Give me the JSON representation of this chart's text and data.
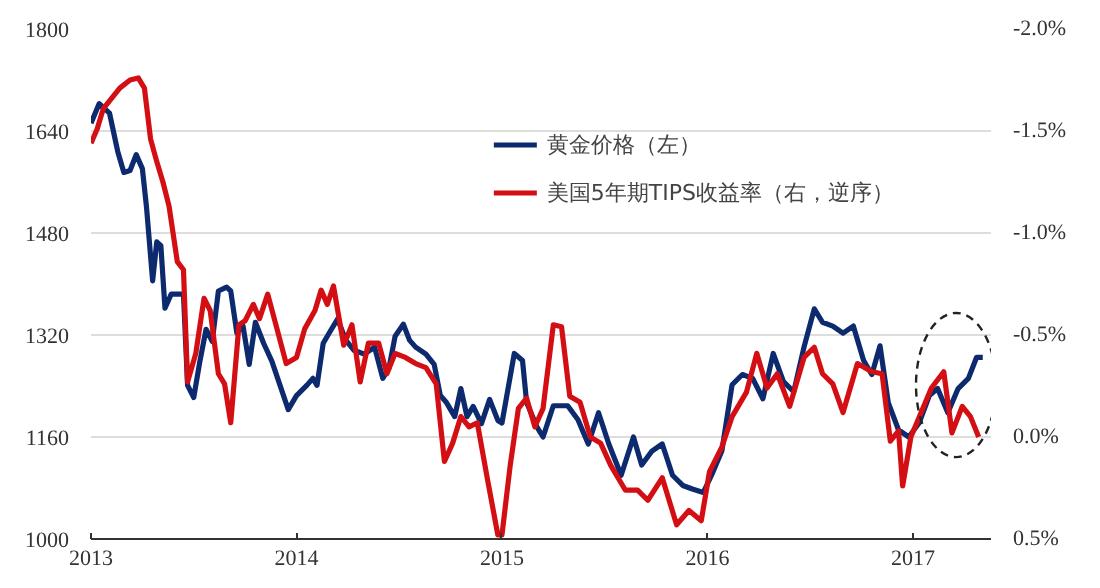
{
  "chart_data": {
    "type": "line",
    "x": [
      2013.0,
      2013.04,
      2013.09,
      2013.13,
      2013.16,
      2013.19,
      2013.22,
      2013.25,
      2013.27,
      2013.3,
      2013.32,
      2013.34,
      2013.36,
      2013.39,
      2013.42,
      2013.45,
      2013.47,
      2013.5,
      2013.53,
      2013.56,
      2013.59,
      2013.62,
      2013.66,
      2013.68,
      2013.71,
      2013.74,
      2013.77,
      2013.8,
      2013.84,
      2013.88,
      2013.92,
      2013.96,
      2014.0,
      2014.05,
      2014.08,
      2014.1,
      2014.13,
      2014.17,
      2014.2,
      2014.24,
      2014.28,
      2014.33,
      2014.38,
      2014.42,
      2014.45,
      2014.48,
      2014.52,
      2014.55,
      2014.58,
      2014.63,
      2014.67,
      2014.7,
      2014.73,
      2014.77,
      2014.8,
      2014.83,
      2014.86,
      2014.9,
      2014.94,
      2014.98,
      2015.0,
      2015.06,
      2015.1,
      2015.12,
      2015.17,
      2015.2,
      2015.25,
      2015.32,
      2015.37,
      2015.42,
      2015.47,
      2015.52,
      2015.58,
      2015.64,
      2015.68,
      2015.73,
      2015.78,
      2015.83,
      2015.88,
      2015.93,
      2015.98,
      2016.02,
      2016.07,
      2016.12,
      2016.17,
      2016.22,
      2016.27,
      2016.32,
      2016.37,
      2016.42,
      2016.47,
      2016.52,
      2016.56,
      2016.61,
      2016.66,
      2016.71,
      2016.76,
      2016.8,
      2016.84,
      2016.88,
      2016.93,
      2016.98,
      2017.03,
      2017.08,
      2017.12,
      2017.17,
      2017.22,
      2017.27,
      2017.31,
      2017.34
    ],
    "series": [
      {
        "name": "黄金价格（左）",
        "color": "#0d2a6e",
        "values": [
          1652,
          1683,
          1668,
          1608,
          1575,
          1578,
          1603,
          1581,
          1521,
          1405,
          1466,
          1460,
          1362,
          1384,
          1384,
          1384,
          1241,
          1222,
          1279,
          1329,
          1310,
          1389,
          1395,
          1389,
          1323,
          1334,
          1274,
          1340,
          1307,
          1279,
          1241,
          1203,
          1225,
          1241,
          1252,
          1241,
          1307,
          1329,
          1345,
          1312,
          1296,
          1290,
          1301,
          1252,
          1268,
          1318,
          1337,
          1312,
          1301,
          1290,
          1274,
          1225,
          1214,
          1192,
          1236,
          1192,
          1208,
          1181,
          1219,
          1186,
          1182,
          1291,
          1280,
          1214,
          1176,
          1160,
          1209,
          1209,
          1187,
          1149,
          1198,
          1149,
          1100,
          1160,
          1116,
          1138,
          1149,
          1100,
          1084,
          1078,
          1073,
          1100,
          1138,
          1242,
          1258,
          1252,
          1220,
          1291,
          1247,
          1231,
          1301,
          1361,
          1340,
          1334,
          1323,
          1334,
          1280,
          1258,
          1303,
          1214,
          1171,
          1160,
          1182,
          1225,
          1236,
          1198,
          1236,
          1252,
          1285,
          1285
        ]
      },
      {
        "name": "美国5年期TIPS收益率（右，逆序）",
        "color": "#d40f14",
        "axis": "y2",
        "x": [
          2013.0,
          2013.03,
          2013.06,
          2013.1,
          2013.14,
          2013.19,
          2013.23,
          2013.26,
          2013.29,
          2013.32,
          2013.35,
          2013.38,
          2013.42,
          2013.45,
          2013.47,
          2013.51,
          2013.55,
          2013.58,
          2013.62,
          2013.65,
          2013.68,
          2013.72,
          2013.75,
          2013.79,
          2013.82,
          2013.86,
          2013.9,
          2013.95,
          2014.0,
          2014.04,
          2014.09,
          2014.12,
          2014.15,
          2014.18,
          2014.23,
          2014.27,
          2014.31,
          2014.35,
          2014.4,
          2014.44,
          2014.48,
          2014.53,
          2014.58,
          2014.63,
          2014.68,
          2014.72,
          2014.76,
          2014.8,
          2014.84,
          2014.88,
          2014.93,
          2014.98,
          2015.0,
          2015.04,
          2015.08,
          2015.12,
          2015.16,
          2015.2,
          2015.25,
          2015.29,
          2015.33,
          2015.38,
          2015.43,
          2015.48,
          2015.53,
          2015.6,
          2015.66,
          2015.71,
          2015.78,
          2015.85,
          2015.91,
          2015.97,
          2016.01,
          2016.07,
          2016.12,
          2016.19,
          2016.24,
          2016.29,
          2016.34,
          2016.4,
          2016.47,
          2016.52,
          2016.56,
          2016.61,
          2016.66,
          2016.73,
          2016.8,
          2016.85,
          2016.89,
          2016.93,
          2016.95,
          2016.99,
          2017.04,
          2017.09,
          2017.15,
          2017.19,
          2017.24,
          2017.28,
          2017.32
        ],
        "values": [
          -1.44,
          -1.51,
          -1.61,
          -1.66,
          -1.71,
          -1.75,
          -1.76,
          -1.71,
          -1.46,
          -1.35,
          -1.25,
          -1.13,
          -0.86,
          -0.82,
          -0.27,
          -0.41,
          -0.68,
          -0.62,
          -0.31,
          -0.26,
          -0.07,
          -0.55,
          -0.57,
          -0.65,
          -0.58,
          -0.7,
          -0.55,
          -0.36,
          -0.39,
          -0.53,
          -0.62,
          -0.72,
          -0.65,
          -0.74,
          -0.45,
          -0.55,
          -0.27,
          -0.46,
          -0.46,
          -0.31,
          -0.41,
          -0.39,
          -0.36,
          -0.34,
          -0.26,
          0.12,
          0.03,
          -0.1,
          -0.05,
          -0.07,
          0.21,
          0.48,
          0.48,
          0.14,
          -0.14,
          -0.19,
          -0.05,
          -0.14,
          -0.55,
          -0.54,
          -0.2,
          -0.17,
          0.0,
          0.03,
          0.14,
          0.26,
          0.26,
          0.31,
          0.2,
          0.43,
          0.36,
          0.41,
          0.17,
          0.05,
          -0.1,
          -0.22,
          -0.41,
          -0.24,
          -0.31,
          -0.15,
          -0.39,
          -0.44,
          -0.31,
          -0.26,
          -0.12,
          -0.36,
          -0.32,
          -0.31,
          0.02,
          -0.03,
          0.24,
          0.0,
          -0.12,
          -0.24,
          -0.32,
          -0.02,
          -0.15,
          -0.1,
          0.0
        ]
      }
    ],
    "xlim": [
      2013,
      2017.38
    ],
    "xticks": [
      2013,
      2014,
      2015,
      2016,
      2017
    ],
    "ylim": [
      1000,
      1800
    ],
    "yticks": [
      1000,
      1160,
      1320,
      1480,
      1640,
      1800
    ],
    "y2lim": [
      0.5,
      -2.0
    ],
    "y2ticks": [
      {
        "value": -2.0,
        "label": "-2.0%"
      },
      {
        "value": -1.5,
        "label": "-1.5%"
      },
      {
        "value": -1.0,
        "label": "-1.0%"
      },
      {
        "value": -0.5,
        "label": "-0.5%"
      },
      {
        "value": 0.0,
        "label": "0.0%"
      },
      {
        "value": 0.5,
        "label": "0.5%"
      }
    ],
    "grid": "y",
    "legend": "top right",
    "line_style": "solid"
  }
}
